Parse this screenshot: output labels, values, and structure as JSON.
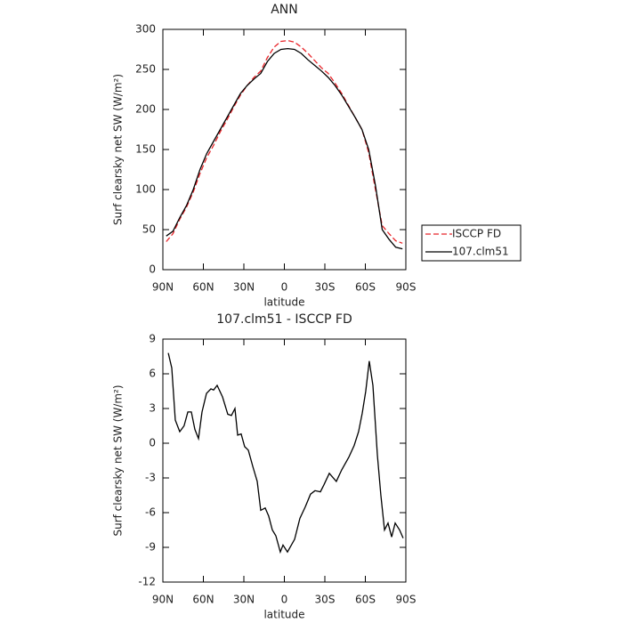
{
  "chart_data": [
    {
      "type": "line",
      "title": "ANN",
      "xlabel": "latitude",
      "ylabel": "Surf clearsky net SW (W/m²)",
      "x": [
        87.5,
        82.5,
        77.5,
        72.5,
        67.5,
        62.5,
        57.5,
        52.5,
        47.5,
        42.5,
        37.5,
        32.5,
        27.5,
        22.5,
        17.5,
        12.5,
        7.5,
        2.5,
        -2.5,
        -7.5,
        -12.5,
        -17.5,
        -22.5,
        -27.5,
        -32.5,
        -37.5,
        -42.5,
        -47.5,
        -52.5,
        -57.5,
        -62.5,
        -67.5,
        -72.5,
        -77.5,
        -82.5,
        -87.5
      ],
      "series": [
        {
          "name": "ISCCP FD",
          "color": "#e8252a",
          "line_style": "dashed",
          "values": [
            35,
            45,
            63,
            78,
            97,
            120,
            140,
            155,
            172,
            187,
            203,
            218,
            230,
            240,
            248,
            265,
            278,
            285,
            286,
            284,
            278,
            270,
            261,
            252,
            245,
            233,
            220,
            205,
            190,
            175,
            146,
            100,
            55,
            45,
            36,
            33
          ]
        },
        {
          "name": "107.clm51",
          "color": "#000000",
          "line_style": "solid",
          "values": [
            42,
            48,
            65,
            80,
            100,
            125,
            145,
            160,
            175,
            190,
            205,
            220,
            230,
            238,
            245,
            260,
            270,
            275,
            276,
            275,
            270,
            262,
            255,
            248,
            240,
            230,
            218,
            204,
            190,
            175,
            150,
            105,
            50,
            38,
            28,
            26
          ]
        }
      ],
      "xlim": [
        90,
        -90
      ],
      "xticks": [
        {
          "value": 90,
          "label": "90N"
        },
        {
          "value": 60,
          "label": "60N"
        },
        {
          "value": 30,
          "label": "30N"
        },
        0,
        {
          "value": -30,
          "label": "30S"
        },
        {
          "value": -60,
          "label": "60S"
        },
        {
          "value": -90,
          "label": "90S"
        }
      ],
      "ylim": [
        0,
        300
      ],
      "yticks": [
        0,
        50,
        100,
        150,
        200,
        250,
        300
      ],
      "legend": "outside right"
    },
    {
      "type": "line",
      "title": "107.clm51 - ISCCP FD",
      "xlabel": "latitude",
      "ylabel": "Surf clearsky net SW (W/m²)",
      "x": [
        86,
        83.4,
        80.8,
        77.5,
        74.3,
        71.5,
        68.9,
        66.3,
        63.6,
        61,
        57.7,
        54.4,
        52.4,
        49.8,
        45.8,
        41.9,
        39.2,
        36.6,
        34.6,
        32,
        29.4,
        26.7,
        23.4,
        20.1,
        17.5,
        14.2,
        11.6,
        8.9,
        6.3,
        3,
        1,
        -2.3,
        -7.6,
        -11.5,
        -15.5,
        -19.4,
        -22.7,
        -26.7,
        -29.3,
        -33.3,
        -38.5,
        -42.5,
        -47.8,
        -51.7,
        -55,
        -57.7,
        -60.3,
        -62.9,
        -65.6,
        -68.9,
        -71.5,
        -74.2,
        -76.8,
        -79.5,
        -82.1,
        -85.4,
        -88
      ],
      "series": [
        {
          "color": "#000000",
          "line_style": "solid",
          "values": [
            7.8,
            6.5,
            2,
            1,
            1.5,
            2.7,
            2.7,
            1.2,
            0.4,
            2.7,
            4.3,
            4.7,
            4.6,
            5,
            4,
            2.5,
            2.4,
            3,
            0.7,
            0.8,
            -0.3,
            -0.6,
            -2,
            -3.3,
            -5.8,
            -5.6,
            -6.3,
            -7.5,
            -8,
            -9.4,
            -8.8,
            -9.4,
            -8.3,
            -6.5,
            -5.5,
            -4.4,
            -4.1,
            -4.2,
            -3.6,
            -2.6,
            -3.3,
            -2.3,
            -1.2,
            -0.2,
            1,
            2.6,
            4.5,
            7.1,
            5,
            -1,
            -4.5,
            -7.5,
            -6.9,
            -8.1,
            -6.9,
            -7.5,
            -8.2
          ]
        }
      ],
      "xlim": [
        90,
        -90
      ],
      "xticks": [
        {
          "value": 90,
          "label": "90N"
        },
        {
          "value": 60,
          "label": "60N"
        },
        {
          "value": 30,
          "label": "30N"
        },
        0,
        {
          "value": -30,
          "label": "30S"
        },
        {
          "value": -60,
          "label": "60S"
        },
        {
          "value": -90,
          "label": "90S"
        }
      ],
      "ylim": [
        -12,
        9
      ],
      "yticks": [
        -12,
        -9,
        -6,
        -3,
        0,
        3,
        6,
        9
      ]
    }
  ]
}
